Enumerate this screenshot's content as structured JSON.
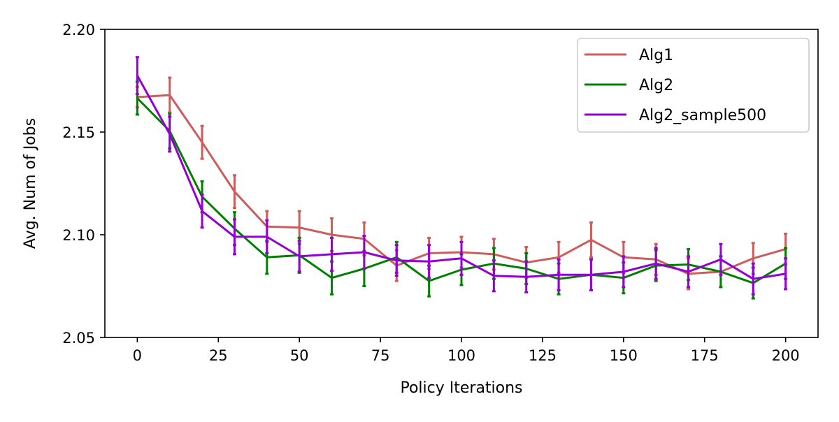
{
  "chart_data": {
    "type": "line",
    "title": "",
    "xlabel": "Policy Iterations",
    "ylabel": "Avg. Num of Jobs",
    "xlim": [
      -10,
      210
    ],
    "ylim": [
      2.05,
      2.2
    ],
    "xticks": [
      0,
      25,
      50,
      75,
      100,
      125,
      150,
      175,
      200
    ],
    "xtick_labels": [
      "0",
      "25",
      "50",
      "75",
      "100",
      "125",
      "150",
      "175",
      "200"
    ],
    "yticks": [
      2.05,
      2.1,
      2.15,
      2.2
    ],
    "ytick_labels": [
      "2.05",
      "2.10",
      "2.15",
      "2.20"
    ],
    "grid": false,
    "legend_position": "top-right",
    "x": [
      0,
      10,
      20,
      30,
      40,
      50,
      60,
      70,
      80,
      90,
      100,
      110,
      120,
      130,
      140,
      150,
      160,
      170,
      180,
      190,
      200
    ],
    "series": [
      {
        "name": "Alg1",
        "color": "#cd5c5c",
        "values": [
          2.167,
          2.168,
          2.145,
          2.121,
          2.104,
          2.1035,
          2.1,
          2.098,
          2.085,
          2.091,
          2.0915,
          2.0905,
          2.0865,
          2.089,
          2.0975,
          2.089,
          2.088,
          2.081,
          2.082,
          2.0885,
          2.093
        ],
        "errors": [
          0.005,
          0.0085,
          0.008,
          0.008,
          0.0075,
          0.008,
          0.008,
          0.008,
          0.0075,
          0.0075,
          0.0075,
          0.0075,
          0.0075,
          0.0075,
          0.0085,
          0.0075,
          0.0075,
          0.0075,
          0.0075,
          0.0075,
          0.0075
        ]
      },
      {
        "name": "Alg2",
        "color": "#008000",
        "values": [
          2.1665,
          2.1505,
          2.1185,
          2.103,
          2.089,
          2.09,
          2.079,
          2.0835,
          2.089,
          2.0775,
          2.083,
          2.086,
          2.0835,
          2.0785,
          2.0805,
          2.079,
          2.085,
          2.0855,
          2.082,
          2.0765,
          2.086
        ],
        "errors": [
          0.008,
          0.0085,
          0.0075,
          0.008,
          0.008,
          0.0085,
          0.008,
          0.0085,
          0.0075,
          0.0075,
          0.0075,
          0.0075,
          0.0075,
          0.0075,
          0.0075,
          0.0075,
          0.0075,
          0.0075,
          0.0075,
          0.0075,
          0.0075
        ]
      },
      {
        "name": "Alg2_sample500",
        "color": "#9400d3",
        "values": [
          2.1775,
          2.149,
          2.1115,
          2.099,
          2.099,
          2.0895,
          2.0905,
          2.0915,
          2.0875,
          2.087,
          2.0885,
          2.08,
          2.0795,
          2.0805,
          2.0805,
          2.082,
          2.086,
          2.082,
          2.088,
          2.0785,
          2.081
        ],
        "errors": [
          0.009,
          0.0085,
          0.008,
          0.0085,
          0.008,
          0.0075,
          0.008,
          0.008,
          0.0075,
          0.008,
          0.008,
          0.0075,
          0.0075,
          0.0075,
          0.0075,
          0.0075,
          0.0075,
          0.0075,
          0.0075,
          0.0075,
          0.0075
        ]
      }
    ]
  }
}
